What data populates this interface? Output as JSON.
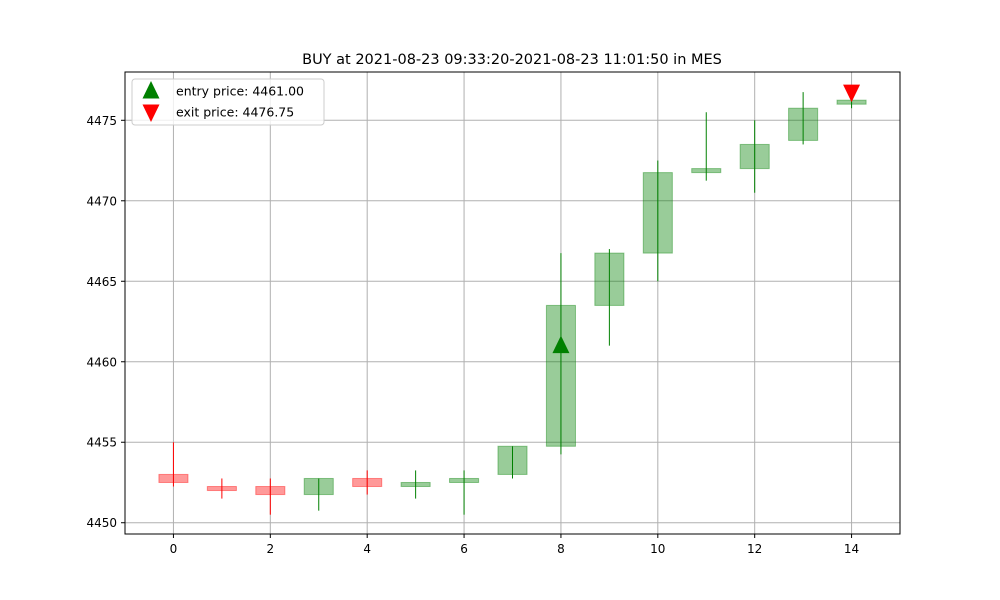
{
  "chart_data": {
    "type": "candlestick",
    "title": "BUY at 2021-08-23 09:33:20-2021-08-23 11:01:50 in MES",
    "xlabel": "",
    "ylabel": "",
    "xlim": [
      -1,
      15
    ],
    "ylim": [
      4449.3,
      4478.0
    ],
    "x_ticks": [
      0,
      2,
      4,
      6,
      8,
      10,
      12,
      14
    ],
    "y_ticks": [
      4450,
      4455,
      4460,
      4465,
      4470,
      4475
    ],
    "grid": true,
    "legend_position": "top-left",
    "colors": {
      "up": "#008000",
      "down": "#ff0000",
      "entry_marker": "#008000",
      "exit_marker": "#ff0000"
    },
    "candles": [
      {
        "x": 0,
        "open": 4453.0,
        "high": 4455.0,
        "low": 4452.25,
        "close": 4452.5
      },
      {
        "x": 1,
        "open": 4452.25,
        "high": 4452.75,
        "low": 4451.5,
        "close": 4452.0
      },
      {
        "x": 2,
        "open": 4452.25,
        "high": 4452.75,
        "low": 4450.5,
        "close": 4451.75
      },
      {
        "x": 3,
        "open": 4451.75,
        "high": 4452.75,
        "low": 4450.75,
        "close": 4452.75
      },
      {
        "x": 4,
        "open": 4452.75,
        "high": 4453.25,
        "low": 4451.75,
        "close": 4452.25
      },
      {
        "x": 5,
        "open": 4452.25,
        "high": 4453.25,
        "low": 4451.5,
        "close": 4452.5
      },
      {
        "x": 6,
        "open": 4452.5,
        "high": 4453.25,
        "low": 4450.5,
        "close": 4452.75
      },
      {
        "x": 7,
        "open": 4453.0,
        "high": 4454.75,
        "low": 4452.75,
        "close": 4454.75
      },
      {
        "x": 8,
        "open": 4454.75,
        "high": 4466.75,
        "low": 4454.25,
        "close": 4463.5
      },
      {
        "x": 9,
        "open": 4463.5,
        "high": 4467.0,
        "low": 4461.0,
        "close": 4466.75
      },
      {
        "x": 10,
        "open": 4466.75,
        "high": 4472.5,
        "low": 4465.0,
        "close": 4471.75
      },
      {
        "x": 11,
        "open": 4471.75,
        "high": 4475.5,
        "low": 4471.25,
        "close": 4472.0
      },
      {
        "x": 12,
        "open": 4472.0,
        "high": 4475.0,
        "low": 4470.5,
        "close": 4473.5
      },
      {
        "x": 13,
        "open": 4473.75,
        "high": 4476.75,
        "low": 4473.5,
        "close": 4475.75
      },
      {
        "x": 14,
        "open": 4476.0,
        "high": 4476.5,
        "low": 4475.75,
        "close": 4476.25
      }
    ],
    "markers": [
      {
        "name": "entry price: 4461.00",
        "x": 8,
        "y": 4461.0,
        "shape": "triangle-up"
      },
      {
        "name": "exit price: 4476.75",
        "x": 14,
        "y": 4476.75,
        "shape": "triangle-down"
      }
    ]
  }
}
